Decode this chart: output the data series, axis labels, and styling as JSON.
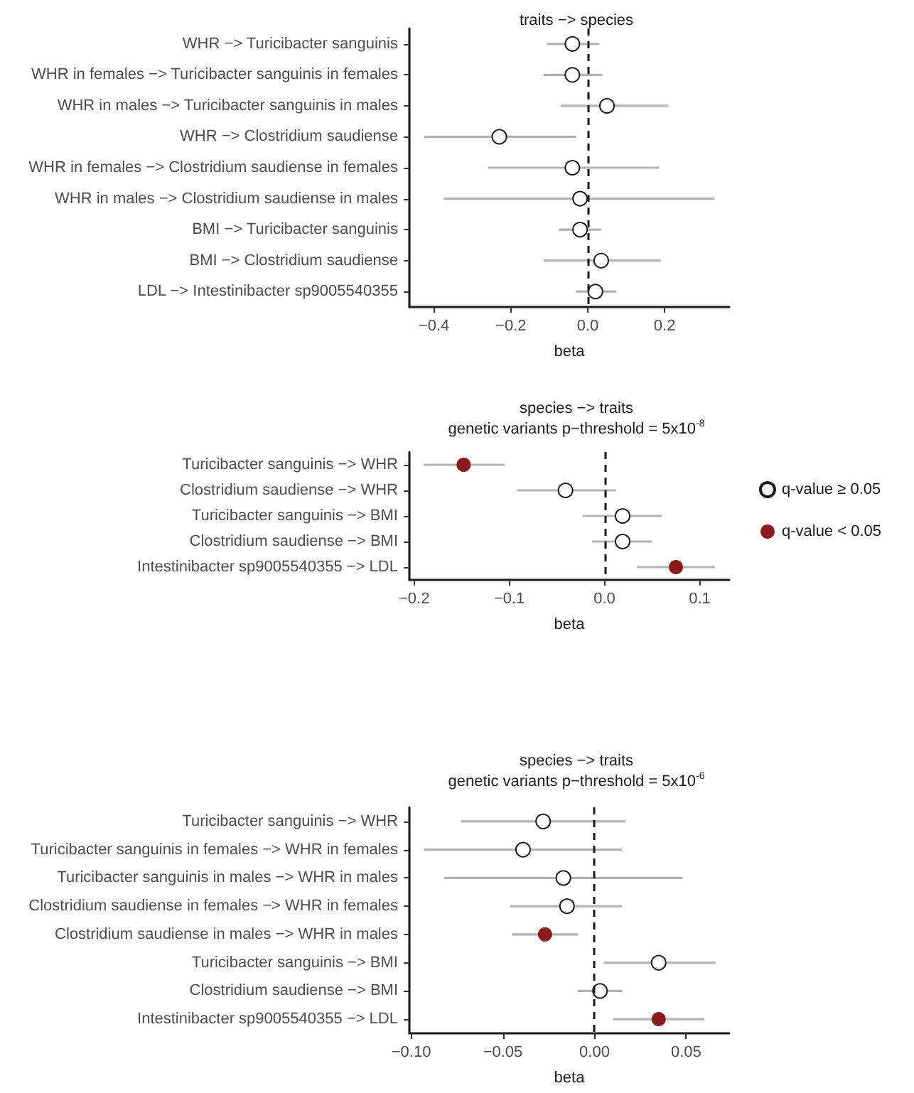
{
  "chart_data": [
    {
      "type": "scatter",
      "title": "traits −> species",
      "xlabel": "beta",
      "orientation": "horizontal",
      "marker": "circle",
      "legend": false,
      "categories": [
        "WHR −> Turicibacter sanguinis",
        "WHR in females −> Turicibacter sanguinis in females",
        "WHR in males −> Turicibacter sanguinis in males",
        "WHR −> Clostridium saudiense",
        "WHR in females −> Clostridium saudiense in females",
        "WHR in males −> Clostridium saudiense in males",
        "BMI −> Turicibacter sanguinis",
        "BMI −> Clostridium saudiense",
        "LDL −> Intestinibacter sp9005540355"
      ],
      "series": [
        {
          "color": "#ffffff",
          "values": [
            -0.04,
            -0.04,
            0.05,
            -0.23,
            -0.04,
            -0.02,
            -0.02,
            0.035,
            0.02
          ],
          "errors": [
            [
              -0.106,
              0.03
            ],
            [
              -0.115,
              0.038
            ],
            [
              -0.07,
              0.21
            ],
            [
              -0.425,
              -0.03
            ],
            [
              -0.26,
              0.185
            ],
            [
              -0.375,
              0.33
            ],
            [
              -0.075,
              0.035
            ],
            [
              -0.115,
              0.19
            ],
            [
              -0.03,
              0.075
            ]
          ]
        }
      ],
      "xlim": [
        -0.464,
        0.368
      ],
      "xticks": [
        {
          "value": -0.4,
          "label": "−0.4"
        },
        {
          "value": -0.2,
          "label": "−0.2"
        },
        {
          "value": 0,
          "label": "0.0"
        },
        {
          "value": 0.2,
          "label": "0.2"
        }
      ],
      "ref_lines": [
        {
          "axis": "x",
          "value": 0,
          "line_style": "dashed"
        }
      ]
    },
    {
      "type": "scatter",
      "title": "species −> traits",
      "subtitle": "genetic variants p−threshold = 5x10$^{-8}$",
      "xlabel": "beta",
      "orientation": "horizontal",
      "marker": "circle",
      "legend": "right",
      "categories": [
        "Turicibacter sanguinis −> WHR",
        "Clostridium saudiense −> WHR",
        "Turicibacter sanguinis −> BMI",
        "Clostridium saudiense −> BMI",
        "Intestinibacter sp9005540355 −> LDL"
      ],
      "series": [
        {
          "name": "q-value ≥ 0.05",
          "color": "#ffffff",
          "values": [
            null,
            -0.041,
            0.019,
            0.019,
            null
          ],
          "errors": [
            null,
            [
              -0.092,
              0.012
            ],
            [
              -0.023,
              0.06
            ],
            [
              -0.013,
              0.05
            ],
            null
          ]
        },
        {
          "name": "q-value < 0.05",
          "color": "#8b1a1a",
          "values": [
            -0.148,
            null,
            null,
            null,
            0.075
          ],
          "errors": [
            [
              -0.19,
              -0.105
            ],
            null,
            null,
            null,
            [
              0.034,
              0.116
            ]
          ]
        }
      ],
      "xlim": [
        -0.205,
        0.131
      ],
      "xticks": [
        {
          "value": -0.2,
          "label": "−0.2"
        },
        {
          "value": -0.1,
          "label": "−0.1"
        },
        {
          "value": 0,
          "label": "0.0"
        },
        {
          "value": 0.1,
          "label": "0.1"
        }
      ],
      "ref_lines": [
        {
          "axis": "x",
          "value": 0,
          "line_style": "dashed"
        }
      ]
    },
    {
      "type": "scatter",
      "title": "species −> traits",
      "subtitle": "genetic variants p−threshold = 5x10$^{-6}$",
      "xlabel": "beta",
      "orientation": "horizontal",
      "marker": "circle",
      "legend": false,
      "categories": [
        "Turicibacter sanguinis −> WHR",
        "Turicibacter sanguinis in females −> WHR in females",
        "Turicibacter sanguinis in males −> WHR in males",
        "Clostridium saudiense in females −> WHR in females",
        "Clostridium saudiense in males −> WHR in males",
        "Turicibacter sanguinis −> BMI",
        "Clostridium saudiense −> BMI",
        "Intestinibacter sp9005540355 −> LDL"
      ],
      "series": [
        {
          "color": "#ffffff",
          "values": [
            -0.028,
            -0.039,
            -0.017,
            -0.015,
            null,
            0.035,
            0.003,
            null
          ],
          "errors": [
            [
              -0.073,
              0.017
            ],
            [
              -0.093,
              0.015
            ],
            [
              -0.082,
              0.048
            ],
            [
              -0.046,
              0.015
            ],
            null,
            [
              0.005,
              0.066
            ],
            [
              -0.009,
              0.015
            ],
            null
          ]
        },
        {
          "color": "#8b1a1a",
          "values": [
            null,
            null,
            null,
            null,
            -0.027,
            null,
            null,
            0.035
          ],
          "errors": [
            null,
            null,
            null,
            null,
            [
              -0.045,
              -0.009
            ],
            null,
            null,
            [
              0.01,
              0.06
            ]
          ]
        }
      ],
      "xlim": [
        -0.101,
        0.0735
      ],
      "xticks": [
        {
          "value": -0.1,
          "label": "−0.10"
        },
        {
          "value": -0.05,
          "label": "−0.05"
        },
        {
          "value": 0,
          "label": "0.00"
        },
        {
          "value": 0.05,
          "label": "0.05"
        }
      ],
      "ref_lines": [
        {
          "axis": "x",
          "value": 0,
          "line_style": "dashed"
        }
      ]
    }
  ]
}
